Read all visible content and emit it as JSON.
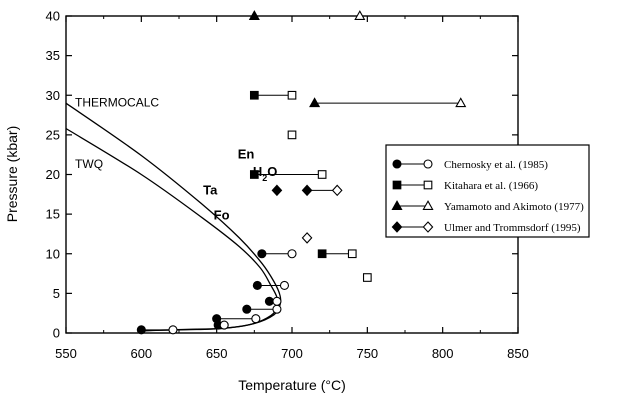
{
  "chart_data": {
    "type": "scatter",
    "title": "",
    "xlabel": "Temperature (°C)",
    "ylabel": "Pressure (kbar)",
    "xlim": [
      550,
      850
    ],
    "ylim": [
      0,
      40
    ],
    "x_ticks": [
      550,
      600,
      650,
      700,
      750,
      800,
      850
    ],
    "y_ticks": [
      0,
      5,
      10,
      15,
      20,
      25,
      30,
      35,
      40
    ],
    "grid": false,
    "legend": {
      "placement": "right",
      "entries": [
        {
          "label": "Chernosky et al. (1985)",
          "filled_marker": "circle-filled",
          "open_marker": "circle-open"
        },
        {
          "label": "Kitahara et al. (1966)",
          "filled_marker": "square-filled",
          "open_marker": "square-open"
        },
        {
          "label": "Yamamoto and Akimoto (1977)",
          "filled_marker": "triangle-filled",
          "open_marker": "triangle-open"
        },
        {
          "label": "Ulmer and Trommsdorf (1995)",
          "filled_marker": "diamond-filled",
          "open_marker": "diamond-open"
        }
      ]
    },
    "curves": [
      {
        "label": "THERMOCALC",
        "points": [
          [
            550,
            29
          ],
          [
            600,
            22.4
          ],
          [
            640,
            16.3
          ],
          [
            665,
            12.0
          ],
          [
            680,
            8.8
          ],
          [
            688,
            6.5
          ],
          [
            692,
            4.8
          ],
          [
            692,
            3.5
          ],
          [
            688,
            2.3
          ],
          [
            675,
            1.2
          ],
          [
            655,
            0.6
          ],
          [
            630,
            0.45
          ],
          [
            610,
            0.35
          ],
          [
            600,
            0.3
          ]
        ]
      },
      {
        "label": "TWQ",
        "points": [
          [
            550,
            25.8
          ],
          [
            600,
            20.0
          ],
          [
            640,
            14.6
          ],
          [
            665,
            10.9
          ],
          [
            679,
            8.2
          ],
          [
            686,
            6.0
          ],
          [
            690,
            4.5
          ],
          [
            690,
            3.3
          ],
          [
            686,
            2.2
          ],
          [
            673,
            1.1
          ],
          [
            653,
            0.55
          ],
          [
            630,
            0.42
          ],
          [
            610,
            0.33
          ],
          [
            600,
            0.28
          ]
        ]
      }
    ],
    "curve_labels": [
      {
        "text": "THERMOCALC",
        "x": 556,
        "y": 28.6
      },
      {
        "text": "TWQ",
        "x": 556,
        "y": 20.8
      }
    ],
    "phase_labels": [
      {
        "text": "En",
        "x": 664,
        "y": 22.0
      },
      {
        "text": "H",
        "sub": "2",
        "after": "O",
        "x": 674,
        "y": 19.8
      },
      {
        "text": "Ta",
        "x": 641,
        "y": 17.5
      },
      {
        "text": "Fo",
        "x": 648,
        "y": 14.3
      }
    ],
    "series": [
      {
        "name": "Chernosky et al. (1985)",
        "marker": "circle",
        "pairs": [
          {
            "filled": [
              600,
              0.4
            ],
            "open": [
              621,
              0.4
            ]
          },
          {
            "filled": [
              651,
              1.0
            ],
            "open": [
              655,
              1.0
            ]
          },
          {
            "filled": [
              650,
              1.8
            ],
            "open": [
              676,
              1.8
            ]
          },
          {
            "filled": [
              670,
              3.0
            ],
            "open": [
              690,
              3.0
            ]
          },
          {
            "filled": [
              685,
              4.0
            ],
            "open": [
              690,
              4.0
            ]
          },
          {
            "filled": [
              677,
              6.0
            ],
            "open": [
              695,
              6.0
            ]
          },
          {
            "filled": [
              680,
              10.0
            ],
            "open": [
              700,
              10.0
            ]
          }
        ]
      },
      {
        "name": "Kitahara et al. (1966)",
        "marker": "square",
        "pairs": [
          {
            "filled": [
              675,
              30.0
            ],
            "open": [
              700,
              30.0
            ]
          },
          {
            "filled": [
              675,
              20.0
            ],
            "open": [
              720,
              20.0
            ]
          },
          {
            "filled": [
              720,
              10.0
            ],
            "open": [
              740,
              10.0
            ]
          }
        ],
        "open_only": [
          [
            700,
            25.0
          ],
          [
            750,
            7.0
          ]
        ]
      },
      {
        "name": "Yamamoto and Akimoto (1977)",
        "marker": "triangle",
        "pairs": [
          {
            "filled": [
              675,
              40.0
            ],
            "open": [
              745,
              40.0
            ]
          },
          {
            "filled": [
              715,
              29.0
            ],
            "open": [
              812,
              29.0
            ]
          }
        ]
      },
      {
        "name": "Ulmer and Trommsdorf (1995)",
        "marker": "diamond",
        "pairs": [
          {
            "filled": [
              710,
              18.0
            ],
            "open": [
              730,
              18.0
            ]
          }
        ],
        "filled_only": [
          [
            690,
            18.0
          ]
        ],
        "open_only": [
          [
            710,
            12.0
          ]
        ]
      }
    ]
  }
}
